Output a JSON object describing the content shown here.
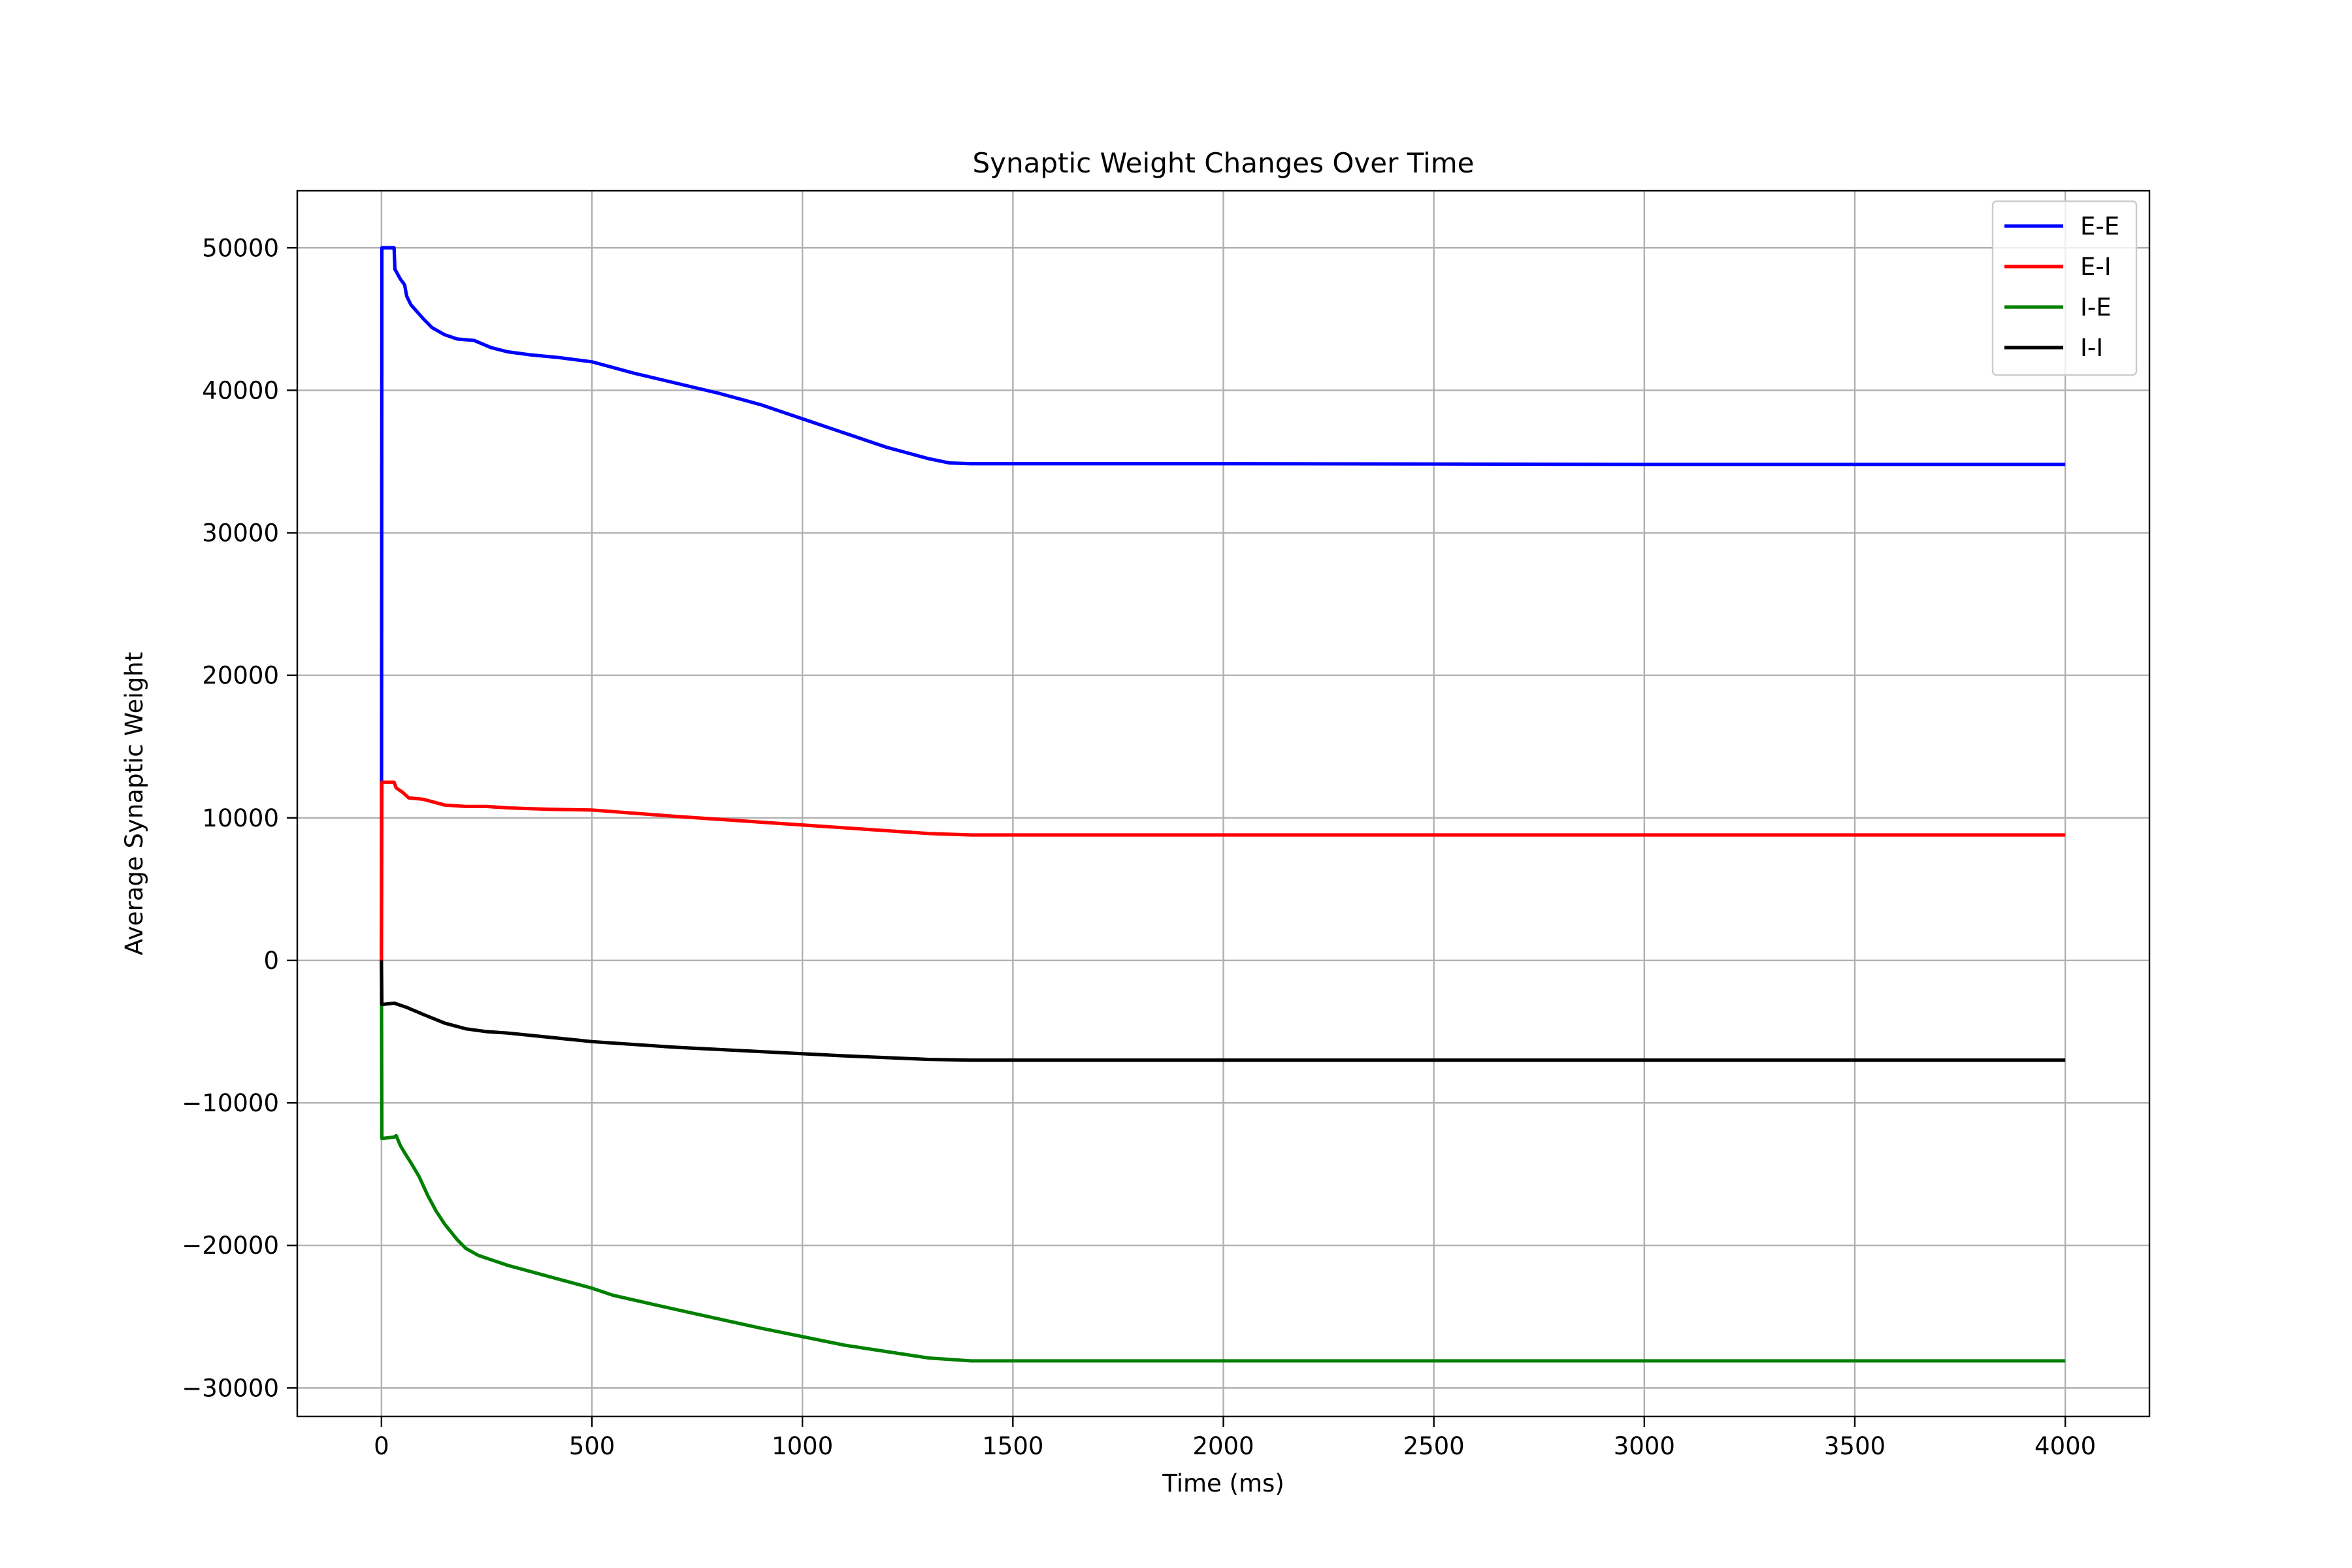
{
  "chart_data": {
    "type": "line",
    "title": "Synaptic Weight Changes Over Time",
    "xlabel": "Time (ms)",
    "ylabel": "Average Synaptic Weight",
    "xlim": [
      -200,
      4200
    ],
    "ylim": [
      -32000,
      54000
    ],
    "xticks": [
      0,
      500,
      1000,
      1500,
      2000,
      2500,
      3000,
      3500,
      4000
    ],
    "xtick_labels": [
      "0",
      "500",
      "1000",
      "1500",
      "2000",
      "2500",
      "3000",
      "3500",
      "4000"
    ],
    "yticks": [
      -30000,
      -20000,
      -10000,
      0,
      10000,
      20000,
      30000,
      40000,
      50000
    ],
    "ytick_labels": [
      "−30000",
      "−20000",
      "−10000",
      "0",
      "10000",
      "20000",
      "30000",
      "40000",
      "50000"
    ],
    "grid": true,
    "legend_position": "top-right",
    "series": [
      {
        "name": "E-E",
        "color": "#0000ff",
        "points": [
          [
            0,
            0
          ],
          [
            1,
            50000
          ],
          [
            30,
            50000
          ],
          [
            32,
            48500
          ],
          [
            45,
            47800
          ],
          [
            55,
            47400
          ],
          [
            60,
            46600
          ],
          [
            70,
            46000
          ],
          [
            85,
            45500
          ],
          [
            100,
            45000
          ],
          [
            120,
            44400
          ],
          [
            150,
            43900
          ],
          [
            180,
            43600
          ],
          [
            220,
            43500
          ],
          [
            260,
            43000
          ],
          [
            300,
            42700
          ],
          [
            350,
            42500
          ],
          [
            420,
            42300
          ],
          [
            500,
            42000
          ],
          [
            600,
            41200
          ],
          [
            700,
            40500
          ],
          [
            800,
            39800
          ],
          [
            900,
            39000
          ],
          [
            1000,
            38000
          ],
          [
            1100,
            37000
          ],
          [
            1200,
            36000
          ],
          [
            1300,
            35200
          ],
          [
            1350,
            34900
          ],
          [
            1400,
            34850
          ],
          [
            2000,
            34850
          ],
          [
            2500,
            34830
          ],
          [
            3000,
            34800
          ],
          [
            3500,
            34800
          ],
          [
            4000,
            34800
          ]
        ]
      },
      {
        "name": "E-I",
        "color": "#ff0000",
        "points": [
          [
            0,
            0
          ],
          [
            1,
            12500
          ],
          [
            30,
            12500
          ],
          [
            35,
            12100
          ],
          [
            50,
            11800
          ],
          [
            65,
            11400
          ],
          [
            100,
            11300
          ],
          [
            150,
            10900
          ],
          [
            200,
            10800
          ],
          [
            250,
            10800
          ],
          [
            300,
            10700
          ],
          [
            400,
            10600
          ],
          [
            500,
            10550
          ],
          [
            700,
            10100
          ],
          [
            900,
            9700
          ],
          [
            1100,
            9300
          ],
          [
            1300,
            8900
          ],
          [
            1400,
            8800
          ],
          [
            2000,
            8800
          ],
          [
            3000,
            8800
          ],
          [
            4000,
            8800
          ]
        ]
      },
      {
        "name": "I-E",
        "color": "#008000",
        "points": [
          [
            0,
            0
          ],
          [
            1,
            -12500
          ],
          [
            30,
            -12400
          ],
          [
            35,
            -12300
          ],
          [
            45,
            -13000
          ],
          [
            55,
            -13500
          ],
          [
            70,
            -14200
          ],
          [
            90,
            -15200
          ],
          [
            110,
            -16500
          ],
          [
            130,
            -17600
          ],
          [
            150,
            -18500
          ],
          [
            180,
            -19600
          ],
          [
            200,
            -20200
          ],
          [
            230,
            -20700
          ],
          [
            260,
            -21000
          ],
          [
            300,
            -21400
          ],
          [
            400,
            -22200
          ],
          [
            500,
            -23000
          ],
          [
            550,
            -23500
          ],
          [
            700,
            -24500
          ],
          [
            900,
            -25800
          ],
          [
            1100,
            -27000
          ],
          [
            1300,
            -27900
          ],
          [
            1400,
            -28100
          ],
          [
            2000,
            -28100
          ],
          [
            3000,
            -28100
          ],
          [
            4000,
            -28100
          ]
        ]
      },
      {
        "name": "I-I",
        "color": "#000000",
        "points": [
          [
            0,
            0
          ],
          [
            1,
            -3100
          ],
          [
            30,
            -3000
          ],
          [
            60,
            -3300
          ],
          [
            100,
            -3800
          ],
          [
            150,
            -4400
          ],
          [
            200,
            -4800
          ],
          [
            250,
            -5000
          ],
          [
            300,
            -5100
          ],
          [
            400,
            -5400
          ],
          [
            500,
            -5700
          ],
          [
            700,
            -6100
          ],
          [
            900,
            -6400
          ],
          [
            1100,
            -6700
          ],
          [
            1300,
            -6950
          ],
          [
            1400,
            -7000
          ],
          [
            2000,
            -7000
          ],
          [
            3000,
            -7000
          ],
          [
            4000,
            -7000
          ]
        ]
      }
    ]
  }
}
